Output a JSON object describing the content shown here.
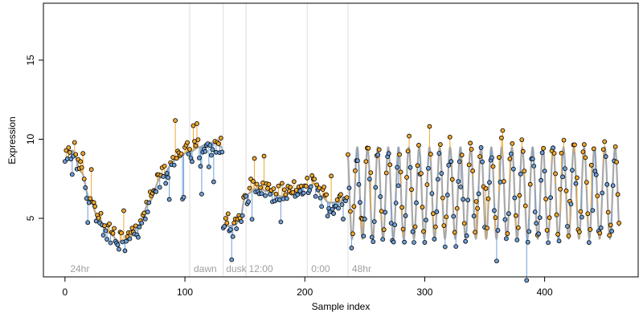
{
  "chart_data": {
    "type": "scatter",
    "xlabel": "Sample index",
    "ylabel": "Expression",
    "xlim": [
      -18,
      478
    ],
    "ylim": [
      1.3,
      18.6
    ],
    "x_ticks": [
      0,
      100,
      200,
      300,
      400
    ],
    "y_ticks": [
      5,
      10,
      15
    ],
    "x_tick_labels": [
      "0",
      "100",
      "200",
      "300",
      "400"
    ],
    "y_tick_labels": [
      "5",
      "10",
      "15"
    ],
    "grid": false,
    "legend": "none",
    "n_samples": 463,
    "colors": {
      "fitted_line": "#a8a8a8",
      "residual_above": "#f0a830",
      "residual_below": "#6f9fd8",
      "point_edge": "#000000",
      "phase_divider": "#dcdcdc",
      "phase_label": "#a0a0a0"
    },
    "phase_dividers": [
      104,
      132,
      151,
      202,
      236
    ],
    "phase_labels": [
      {
        "text": "24hr",
        "x": 3
      },
      {
        "text": "dawn",
        "x": 106
      },
      {
        "text": "dusk",
        "x": 133
      },
      {
        "text": "12:00",
        "x": 152
      },
      {
        "text": "0:00",
        "x": 204
      },
      {
        "text": "48hr",
        "x": 238
      }
    ],
    "segments": [
      {
        "name": "24hr",
        "start": 0,
        "end": 103,
        "shape": "spline",
        "knots": [
          [
            0,
            8.6
          ],
          [
            6,
            9.3
          ],
          [
            14,
            7.9
          ],
          [
            20,
            6.3
          ],
          [
            28,
            5.0
          ],
          [
            36,
            4.1
          ],
          [
            46,
            3.5
          ],
          [
            54,
            3.8
          ],
          [
            62,
            4.6
          ],
          [
            70,
            6.0
          ],
          [
            80,
            7.6
          ],
          [
            92,
            8.7
          ],
          [
            103,
            9.2
          ]
        ]
      },
      {
        "name": "dawn",
        "start": 104,
        "end": 131,
        "shape": "spline",
        "knots": [
          [
            104,
            9.2
          ],
          [
            112,
            9.5
          ],
          [
            120,
            9.8
          ],
          [
            126,
            9.7
          ],
          [
            131,
            9.5
          ]
        ]
      },
      {
        "name": "dusk",
        "start": 132,
        "end": 150,
        "shape": "spline",
        "knots": [
          [
            132,
            4.6
          ],
          [
            136,
            4.5
          ],
          [
            142,
            4.6
          ],
          [
            146,
            4.9
          ],
          [
            150,
            6.3
          ]
        ]
      },
      {
        "name": "12:00",
        "start": 151,
        "end": 201,
        "shape": "spline",
        "knots": [
          [
            151,
            6.5
          ],
          [
            160,
            6.9
          ],
          [
            170,
            6.7
          ],
          [
            180,
            6.4
          ],
          [
            190,
            6.6
          ],
          [
            201,
            7.0
          ]
        ]
      },
      {
        "name": "0:00",
        "start": 202,
        "end": 235,
        "shape": "spline",
        "knots": [
          [
            202,
            6.9
          ],
          [
            208,
            7.2
          ],
          [
            214,
            6.4
          ],
          [
            220,
            6.0
          ],
          [
            228,
            6.0
          ],
          [
            235,
            6.3
          ]
        ]
      },
      {
        "name": "48hr",
        "start": 236,
        "end": 462,
        "shape": "oscillation",
        "mean": 6.6,
        "amplitude": 2.9,
        "period": 8.6,
        "phase": 2.2
      }
    ]
  }
}
